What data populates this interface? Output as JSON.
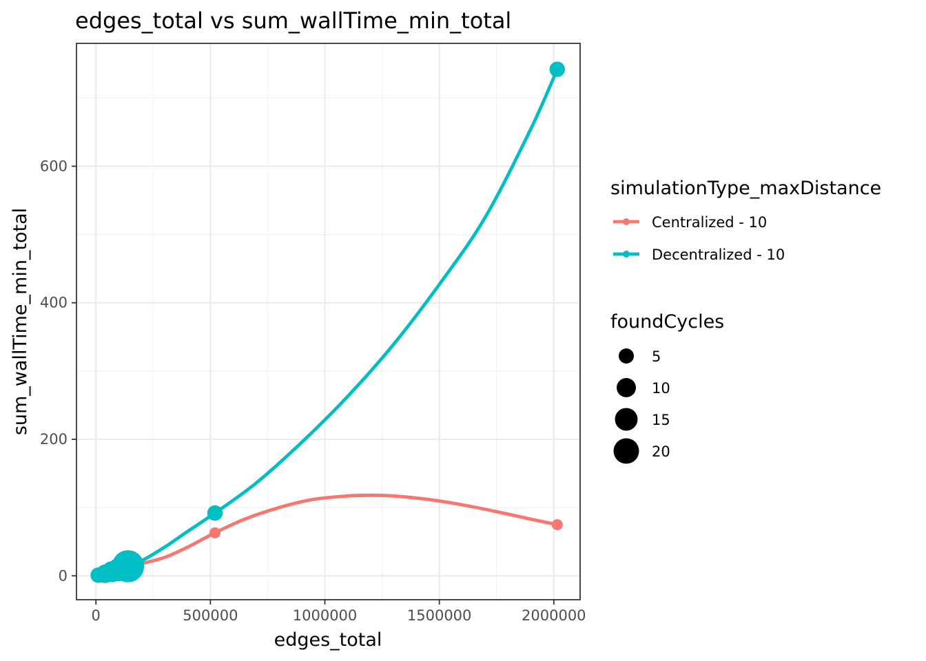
{
  "chart_data": {
    "type": "scatter",
    "title": "edges_total  vs  sum_wallTime_min_total",
    "xlabel": "edges_total",
    "ylabel": "sum_wallTime_min_total",
    "xlim": [
      -85000,
      2115000
    ],
    "ylim": [
      -35,
      780
    ],
    "x_ticks": [
      0,
      500000,
      1000000,
      1500000,
      2000000
    ],
    "x_tick_labels": [
      "0",
      "500000",
      "1000000",
      "1500000",
      "2000000"
    ],
    "y_ticks": [
      0,
      200,
      400,
      600
    ],
    "y_tick_labels": [
      "0",
      "200",
      "400",
      "600"
    ],
    "grid": true,
    "legend_color_title": "simulationType_maxDistance",
    "legend_size_title": "foundCycles",
    "size_legend": [
      {
        "label": "5",
        "value": 5
      },
      {
        "label": "10",
        "value": 10
      },
      {
        "label": "15",
        "value": 15
      },
      {
        "label": "20",
        "value": 20
      }
    ],
    "series": [
      {
        "name": "Centralized - 10",
        "color": "#F8766D",
        "points": [
          {
            "x": 10000,
            "y": 2,
            "size": 1
          },
          {
            "x": 40000,
            "y": 4,
            "size": 1
          },
          {
            "x": 70000,
            "y": 6,
            "size": 1
          },
          {
            "x": 100000,
            "y": 9,
            "size": 1
          },
          {
            "x": 130000,
            "y": 12,
            "size": 1
          },
          {
            "x": 520000,
            "y": 63,
            "size": 1
          },
          {
            "x": 2015000,
            "y": 75,
            "size": 1
          }
        ],
        "smooth": [
          [
            10000,
            3
          ],
          [
            60000,
            6
          ],
          [
            100000,
            9
          ],
          [
            150000,
            14
          ],
          [
            200000,
            18
          ],
          [
            300000,
            27
          ],
          [
            400000,
            42
          ],
          [
            520000,
            63
          ],
          [
            650000,
            83
          ],
          [
            800000,
            100
          ],
          [
            950000,
            112
          ],
          [
            1100000,
            117
          ],
          [
            1200000,
            118
          ],
          [
            1300000,
            117
          ],
          [
            1450000,
            112
          ],
          [
            1600000,
            104
          ],
          [
            1750000,
            94
          ],
          [
            1900000,
            83
          ],
          [
            2015000,
            75
          ]
        ]
      },
      {
        "name": "Decentralized - 10",
        "color": "#00BFC4",
        "points": [
          {
            "x": 10000,
            "y": 1,
            "size": 3
          },
          {
            "x": 40000,
            "y": 3,
            "size": 5
          },
          {
            "x": 70000,
            "y": 6,
            "size": 7
          },
          {
            "x": 100000,
            "y": 9,
            "size": 9
          },
          {
            "x": 125000,
            "y": 11,
            "size": 11
          },
          {
            "x": 140000,
            "y": 14,
            "size": 20
          },
          {
            "x": 520000,
            "y": 92,
            "size": 3
          },
          {
            "x": 2015000,
            "y": 742,
            "size": 3
          }
        ],
        "smooth": [
          [
            10000,
            2
          ],
          [
            60000,
            5
          ],
          [
            100000,
            9
          ],
          [
            150000,
            15
          ],
          [
            200000,
            22
          ],
          [
            300000,
            42
          ],
          [
            400000,
            65
          ],
          [
            520000,
            92
          ],
          [
            700000,
            136
          ],
          [
            900000,
            196
          ],
          [
            1100000,
            263
          ],
          [
            1300000,
            339
          ],
          [
            1500000,
            427
          ],
          [
            1700000,
            525
          ],
          [
            1900000,
            655
          ],
          [
            2015000,
            742
          ]
        ]
      }
    ]
  }
}
